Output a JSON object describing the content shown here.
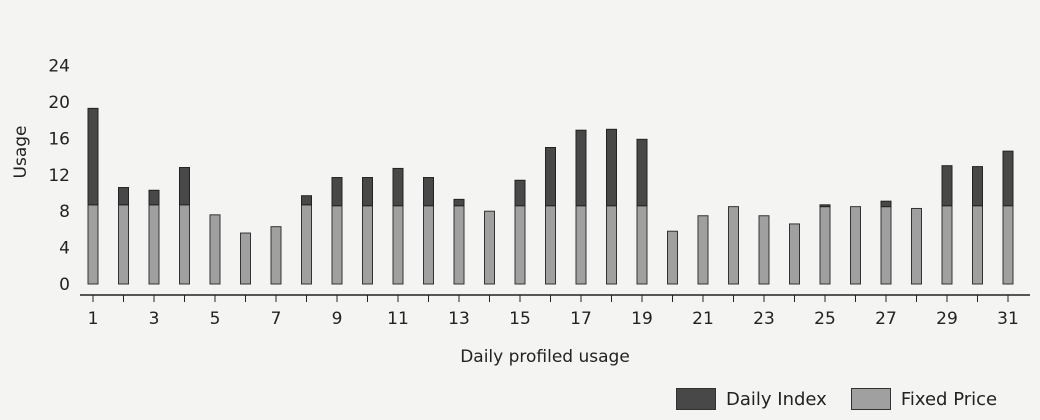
{
  "chart_data": {
    "type": "bar",
    "stacked": true,
    "xlabel": "Daily profiled usage",
    "ylabel": "Usage",
    "ylim": [
      0,
      24
    ],
    "yticks": [
      0,
      4,
      8,
      12,
      16,
      20,
      24
    ],
    "xticks": [
      "1",
      "3",
      "5",
      "7",
      "9",
      "11",
      "13",
      "15",
      "17",
      "19",
      "21",
      "23",
      "25",
      "27",
      "29",
      "31"
    ],
    "categories": [
      1,
      2,
      3,
      4,
      5,
      6,
      7,
      8,
      9,
      10,
      11,
      12,
      13,
      14,
      15,
      16,
      17,
      18,
      19,
      20,
      21,
      22,
      23,
      24,
      25,
      26,
      27,
      28,
      29,
      30,
      31
    ],
    "series": [
      {
        "name": "Fixed Price",
        "color": "#a0a0a0",
        "values": [
          8.7,
          8.7,
          8.7,
          8.7,
          7.6,
          5.6,
          6.3,
          8.7,
          8.6,
          8.6,
          8.6,
          8.6,
          8.6,
          8.0,
          8.6,
          8.6,
          8.6,
          8.6,
          8.6,
          5.8,
          7.5,
          8.5,
          7.5,
          6.6,
          8.5,
          8.5,
          8.5,
          8.3,
          8.6,
          8.6,
          8.6
        ]
      },
      {
        "name": "Daily Index",
        "color": "#484848",
        "values": [
          10.6,
          1.9,
          1.6,
          4.1,
          0,
          0,
          0,
          1.0,
          3.1,
          3.1,
          4.1,
          3.1,
          0.7,
          0,
          2.8,
          6.4,
          8.3,
          8.4,
          7.3,
          0,
          0,
          0,
          0,
          0,
          0.2,
          0,
          0.6,
          0,
          4.4,
          4.3,
          6.0
        ]
      }
    ]
  }
}
